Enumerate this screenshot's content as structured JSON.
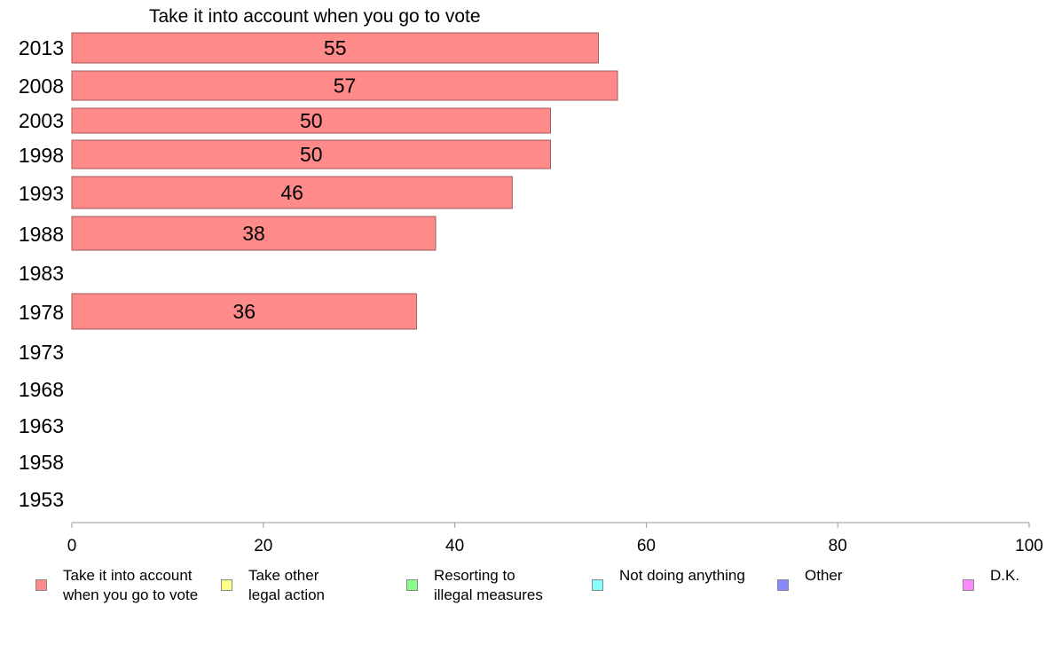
{
  "chart_data": {
    "type": "bar",
    "orientation": "horizontal",
    "title": "Take it into account when you go to vote",
    "categories": [
      "2013",
      "2008",
      "2003",
      "1998",
      "1993",
      "1988",
      "1983",
      "1978",
      "1973",
      "1968",
      "1963",
      "1958",
      "1953"
    ],
    "series": [
      {
        "name": "Take it into account when you go to vote",
        "color": "#ff8a8a",
        "values": [
          55,
          57,
          50,
          50,
          46,
          38,
          null,
          36,
          null,
          null,
          null,
          null,
          null
        ]
      }
    ],
    "xlim": [
      0,
      100
    ],
    "xticks": [
      0,
      20,
      40,
      60,
      80,
      100
    ],
    "grid": false,
    "legend": {
      "placement": "bottom",
      "items": [
        {
          "label": "Take it into account\nwhen you go to vote",
          "color": "#ff8a8a"
        },
        {
          "label": "Take other\nlegal action",
          "color": "#ffff88"
        },
        {
          "label": "Resorting to\nillegal measures",
          "color": "#88ff88"
        },
        {
          "label": "Not doing anything",
          "color": "#88ffff"
        },
        {
          "label": "Other",
          "color": "#8888ff"
        },
        {
          "label": "D.K.",
          "color": "#ff88ff"
        }
      ]
    }
  }
}
